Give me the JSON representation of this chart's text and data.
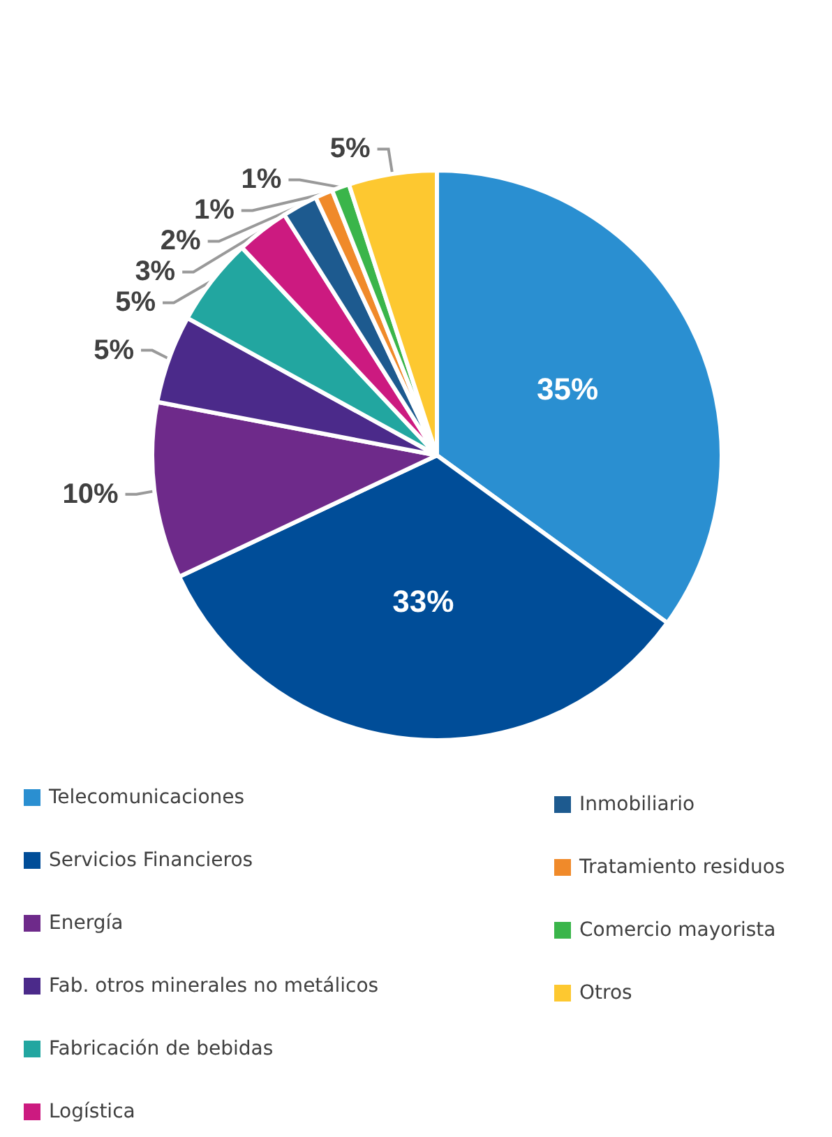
{
  "chart_data": {
    "type": "pie",
    "categories": [
      "Telecomunicaciones",
      "Servicios Financieros",
      "Energía",
      "Fab. otros minerales no metálicos",
      "Fabricación de bebidas",
      "Logística",
      "Inmobiliario",
      "Tratamiento residuos",
      "Comercio mayorista",
      "Otros"
    ],
    "values": [
      35,
      33,
      10,
      5,
      5,
      3,
      2,
      1,
      1,
      5
    ],
    "value_labels": [
      "35%",
      "33%",
      "10%",
      "5%",
      "5%",
      "3%",
      "2%",
      "1%",
      "1%",
      "5%"
    ],
    "colors": [
      "#2a8fd1",
      "#004d98",
      "#6e2a8a",
      "#4b2a8a",
      "#22a6a0",
      "#cc1a80",
      "#1d5a8f",
      "#f08a2a",
      "#3ab54a",
      "#fdc830"
    ],
    "legend": "bottom"
  }
}
